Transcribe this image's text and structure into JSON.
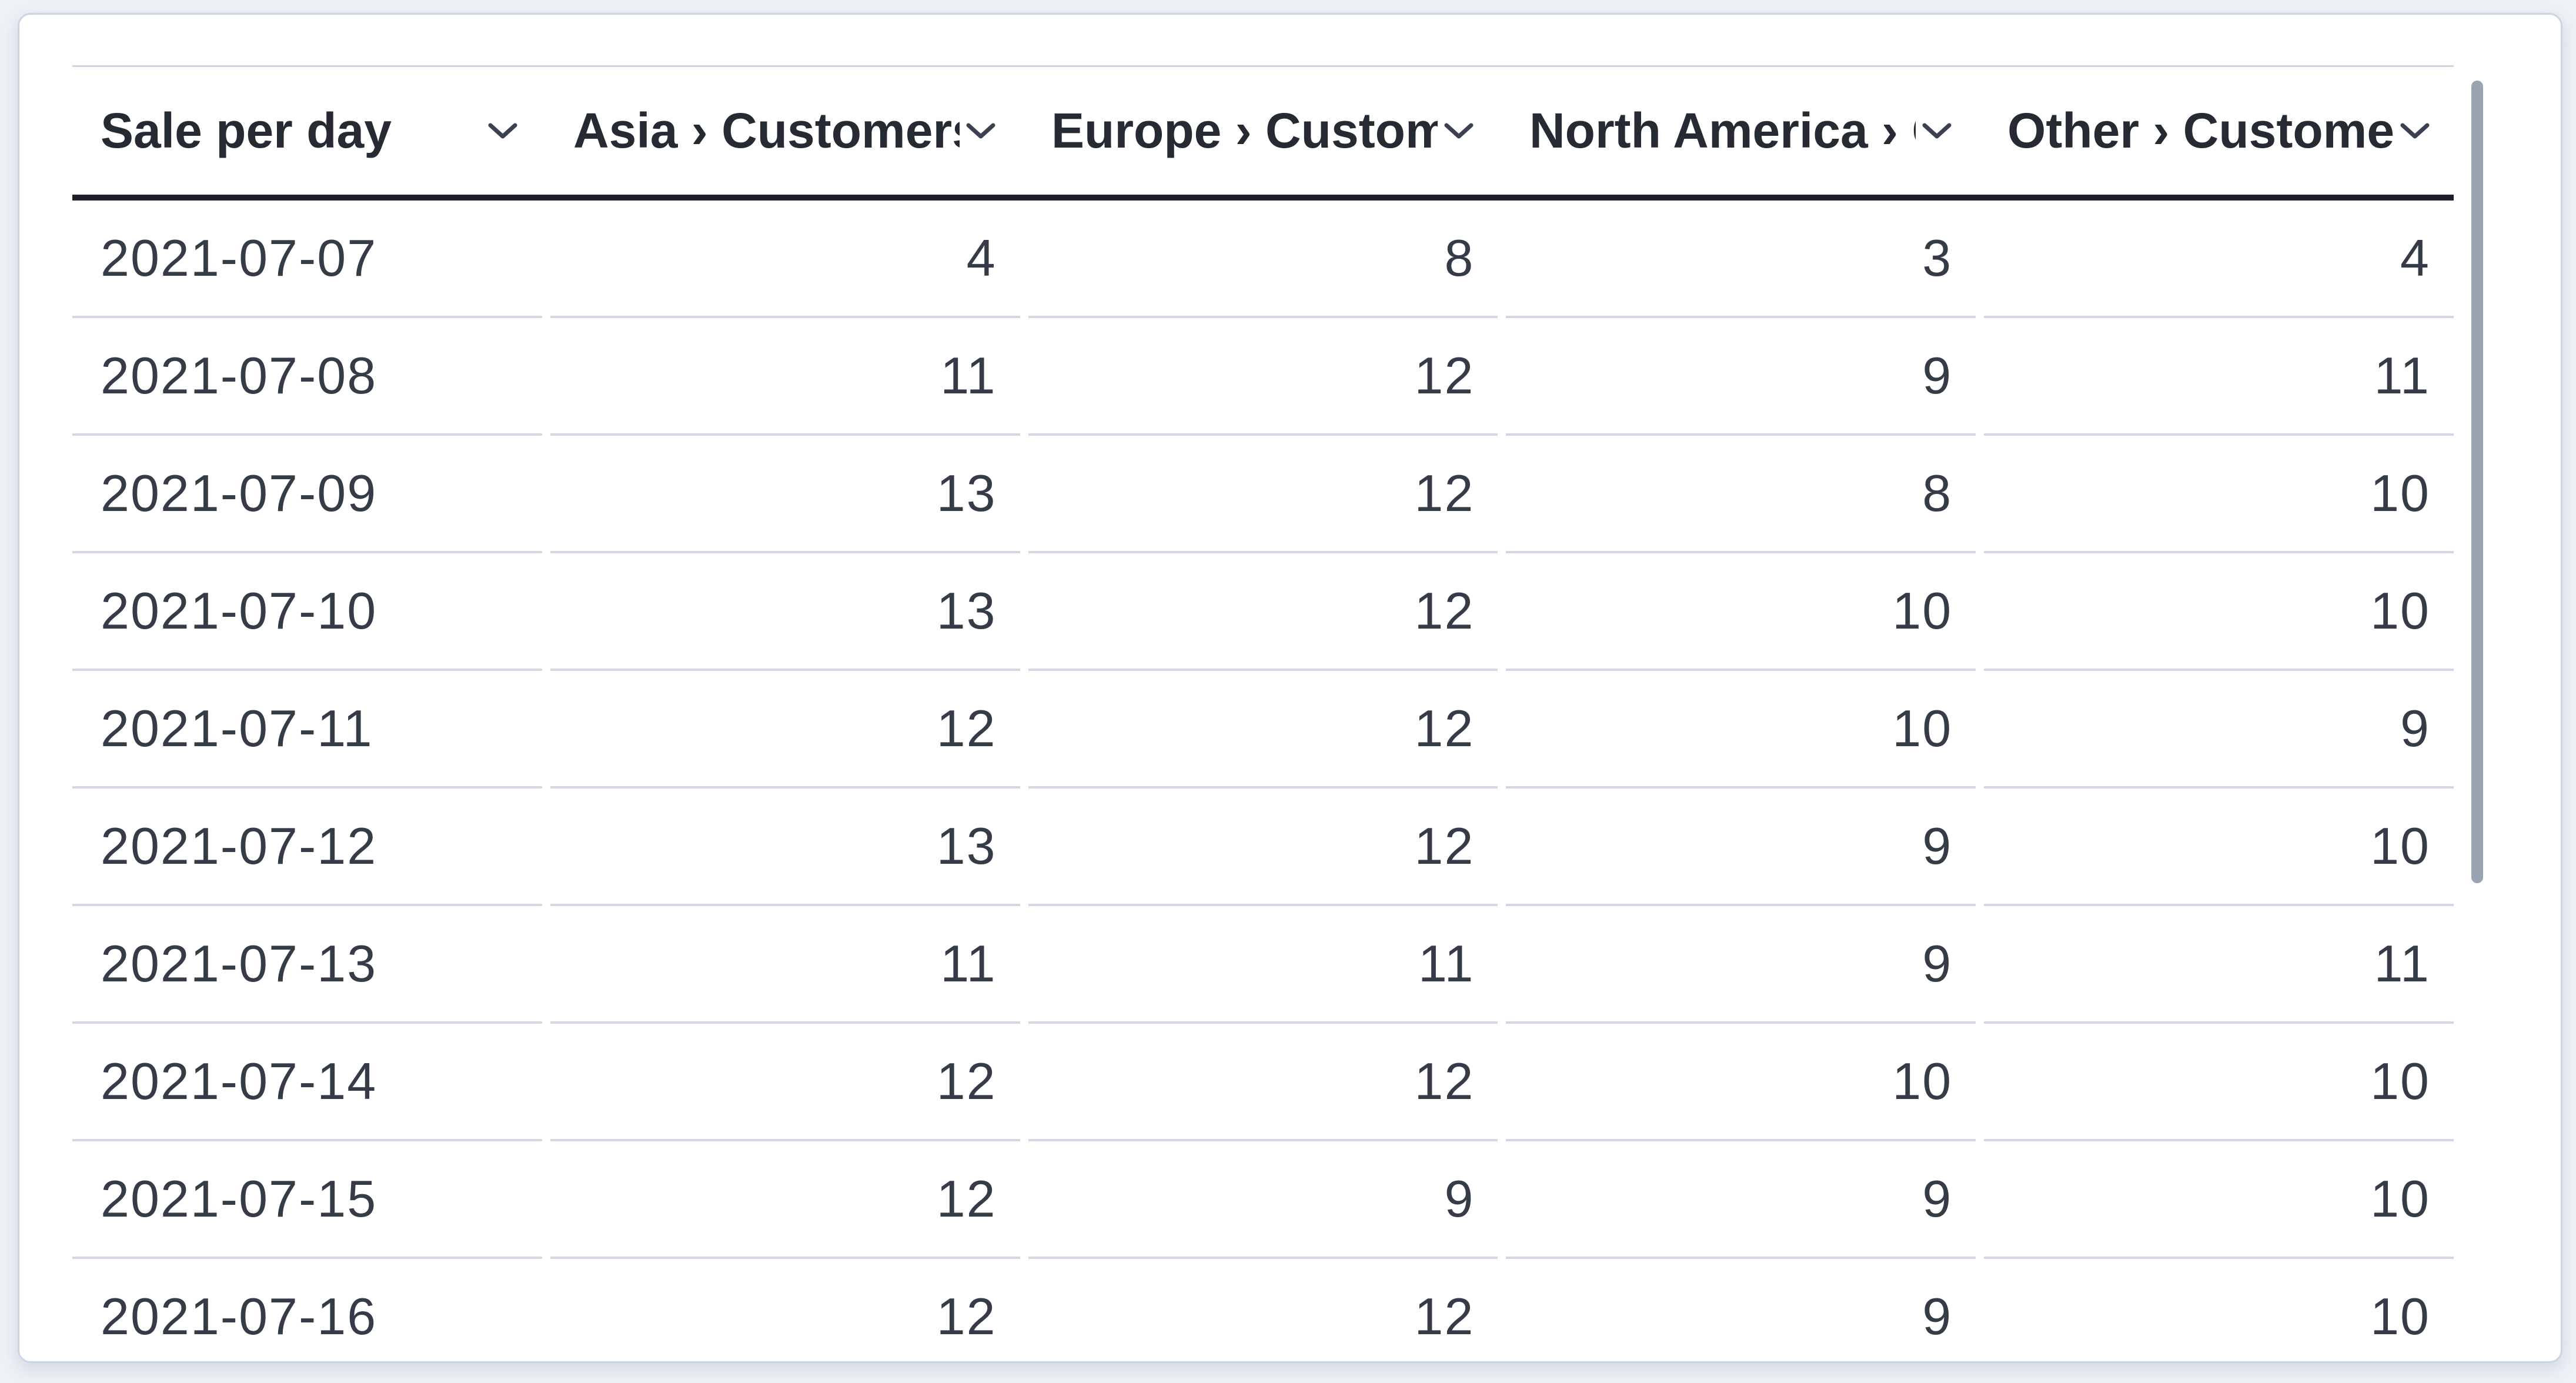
{
  "table": {
    "title": "Sale per day",
    "columns": [
      {
        "key": "date",
        "label": "Sale per day",
        "align": "left"
      },
      {
        "key": "asia",
        "label": "Asia › Customers",
        "align": "right"
      },
      {
        "key": "europe",
        "label": "Europe › Customers",
        "align": "right"
      },
      {
        "key": "north_america",
        "label": "North America › Customers",
        "align": "right"
      },
      {
        "key": "other",
        "label": "Other › Customers",
        "align": "right"
      }
    ],
    "rows": [
      {
        "date": "2021-07-07",
        "asia": "4",
        "europe": "8",
        "north_america": "3",
        "other": "4"
      },
      {
        "date": "2021-07-08",
        "asia": "11",
        "europe": "12",
        "north_america": "9",
        "other": "11"
      },
      {
        "date": "2021-07-09",
        "asia": "13",
        "europe": "12",
        "north_america": "8",
        "other": "10"
      },
      {
        "date": "2021-07-10",
        "asia": "13",
        "europe": "12",
        "north_america": "10",
        "other": "10"
      },
      {
        "date": "2021-07-11",
        "asia": "12",
        "europe": "12",
        "north_america": "10",
        "other": "9"
      },
      {
        "date": "2021-07-12",
        "asia": "13",
        "europe": "12",
        "north_america": "9",
        "other": "10"
      },
      {
        "date": "2021-07-13",
        "asia": "11",
        "europe": "11",
        "north_america": "9",
        "other": "11"
      },
      {
        "date": "2021-07-14",
        "asia": "12",
        "europe": "12",
        "north_america": "10",
        "other": "10"
      },
      {
        "date": "2021-07-15",
        "asia": "12",
        "europe": "9",
        "north_america": "9",
        "other": "10"
      },
      {
        "date": "2021-07-16",
        "asia": "12",
        "europe": "12",
        "north_america": "9",
        "other": "10"
      }
    ]
  },
  "icons": {
    "header_action": "chevron-down-icon"
  },
  "scrollbar": {
    "orientation": "vertical"
  },
  "colors": {
    "page_background": "#eef1f6",
    "card_background": "#ffffff",
    "card_border": "#ccd5e3",
    "header_underline": "#1b1f27",
    "row_divider": "#d2d9e5",
    "header_text": "#262a33",
    "body_text": "#363b48",
    "scrollbar_thumb": "#9aa3b2"
  }
}
